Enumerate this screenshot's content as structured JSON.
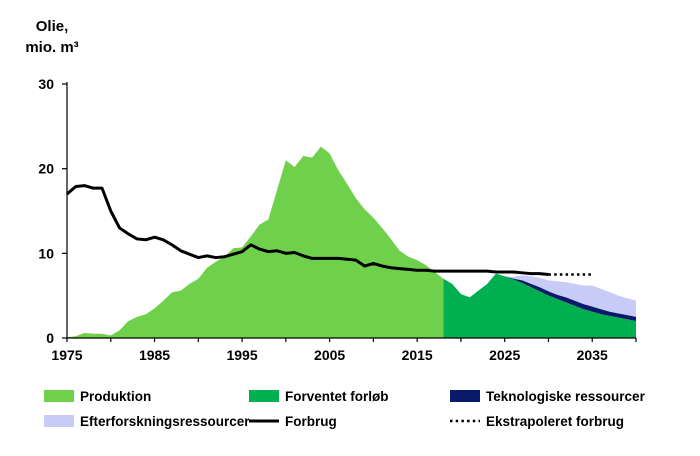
{
  "chart_data": {
    "type": "area",
    "title": "",
    "ylabel_line1": "Olie,",
    "ylabel_line2": "mio. m³",
    "xlabel": "",
    "xlim": [
      1975,
      2040
    ],
    "ylim": [
      0,
      30
    ],
    "yticks": [
      0,
      10,
      20,
      30
    ],
    "xticks": [
      1975,
      1985,
      1995,
      2005,
      2015,
      2025,
      2035
    ],
    "grid": false,
    "legend_position": "bottom",
    "colors": {
      "produktion": "#6fd14b",
      "forventet": "#00b050",
      "teknologiske": "#0a1a6b",
      "efterforskning": "#c9cbf7",
      "forbrug": "#000000",
      "axis": "#000000"
    },
    "series": [
      {
        "name": "Produktion",
        "kind": "area",
        "x": [
          1975,
          1976,
          1977,
          1978,
          1979,
          1980,
          1981,
          1982,
          1983,
          1984,
          1985,
          1986,
          1987,
          1988,
          1989,
          1990,
          1991,
          1992,
          1993,
          1994,
          1995,
          1996,
          1997,
          1998,
          1999,
          2000,
          2001,
          2002,
          2003,
          2004,
          2005,
          2006,
          2007,
          2008,
          2009,
          2010,
          2011,
          2012,
          2013,
          2014,
          2015,
          2016,
          2017,
          2018
        ],
        "values": [
          0.1,
          0.2,
          0.6,
          0.5,
          0.5,
          0.3,
          0.9,
          2.0,
          2.5,
          2.8,
          3.5,
          4.4,
          5.4,
          5.6,
          6.4,
          7.0,
          8.3,
          9.0,
          9.6,
          10.6,
          10.7,
          12.0,
          13.4,
          14.0,
          17.5,
          21.0,
          20.2,
          21.5,
          21.3,
          22.6,
          21.8,
          19.8,
          18.2,
          16.5,
          15.2,
          14.2,
          13.0,
          11.7,
          10.3,
          9.6,
          9.2,
          8.6,
          7.8,
          7.0
        ]
      },
      {
        "name": "Forventet forløb",
        "kind": "area",
        "x": [
          2018,
          2019,
          2020,
          2021,
          2022,
          2023,
          2024,
          2025,
          2026,
          2027,
          2028,
          2029,
          2030,
          2031,
          2032,
          2033,
          2034,
          2035,
          2036,
          2037,
          2038,
          2039,
          2040
        ],
        "values": [
          7.0,
          6.4,
          5.2,
          4.8,
          5.6,
          6.4,
          7.6,
          7.3,
          6.9,
          6.5,
          6.0,
          5.5,
          5.0,
          4.6,
          4.2,
          3.8,
          3.4,
          3.1,
          2.8,
          2.6,
          2.4,
          2.2,
          2.0
        ]
      },
      {
        "name": "Teknologiske ressourcer",
        "kind": "area_stacked",
        "x": [
          2025,
          2026,
          2027,
          2028,
          2029,
          2030,
          2031,
          2032,
          2033,
          2034,
          2035,
          2036,
          2037,
          2038,
          2039,
          2040
        ],
        "values": [
          0.0,
          0.1,
          0.3,
          0.4,
          0.5,
          0.5,
          0.5,
          0.6,
          0.6,
          0.6,
          0.6,
          0.6,
          0.5,
          0.5,
          0.5,
          0.5
        ]
      },
      {
        "name": "Efterforskningsressourcer",
        "kind": "area_stacked",
        "x": [
          2025,
          2026,
          2027,
          2028,
          2029,
          2030,
          2031,
          2032,
          2033,
          2034,
          2035,
          2036,
          2037,
          2038,
          2039,
          2040
        ],
        "values": [
          0.0,
          0.2,
          0.6,
          0.9,
          1.1,
          1.3,
          1.6,
          1.8,
          2.0,
          2.2,
          2.5,
          2.4,
          2.3,
          2.1,
          2.0,
          1.9
        ]
      },
      {
        "name": "Forbrug",
        "kind": "line",
        "x": [
          1975,
          1976,
          1977,
          1978,
          1979,
          1980,
          1981,
          1982,
          1983,
          1984,
          1985,
          1986,
          1987,
          1988,
          1989,
          1990,
          1991,
          1992,
          1993,
          1994,
          1995,
          1996,
          1997,
          1998,
          1999,
          2000,
          2001,
          2002,
          2003,
          2004,
          2005,
          2006,
          2007,
          2008,
          2009,
          2010,
          2011,
          2012,
          2013,
          2014,
          2015,
          2016,
          2017,
          2018,
          2019,
          2020,
          2021,
          2022,
          2023,
          2024,
          2025,
          2026,
          2027,
          2028,
          2029,
          2030
        ],
        "values": [
          17.0,
          17.9,
          18.0,
          17.7,
          17.7,
          15.0,
          13.0,
          12.3,
          11.7,
          11.6,
          11.9,
          11.6,
          11.0,
          10.3,
          9.9,
          9.5,
          9.7,
          9.5,
          9.6,
          9.9,
          10.2,
          11.0,
          10.5,
          10.2,
          10.3,
          10.0,
          10.1,
          9.7,
          9.4,
          9.4,
          9.4,
          9.4,
          9.3,
          9.2,
          8.5,
          8.8,
          8.5,
          8.3,
          8.2,
          8.1,
          8.0,
          8.0,
          7.9,
          7.9,
          7.9,
          7.9,
          7.9,
          7.9,
          7.9,
          7.8,
          7.8,
          7.8,
          7.7,
          7.6,
          7.6,
          7.5
        ]
      },
      {
        "name": "Ekstrapoleret forbrug",
        "kind": "dotted",
        "x": [
          2030,
          2031,
          2032,
          2033,
          2034,
          2035
        ],
        "values": [
          7.5,
          7.5,
          7.5,
          7.5,
          7.5,
          7.5
        ]
      }
    ],
    "legend": [
      {
        "label": "Produktion",
        "symbol": "box",
        "color": "#6fd14b"
      },
      {
        "label": "Forventet forløb",
        "symbol": "box",
        "color": "#00b050"
      },
      {
        "label": "Teknologiske ressourcer",
        "symbol": "box",
        "color": "#0a1a6b"
      },
      {
        "label": "Efterforskningsressourcer",
        "symbol": "box",
        "color": "#c9cbf7"
      },
      {
        "label": "Forbrug",
        "symbol": "line",
        "color": "#000000"
      },
      {
        "label": "Ekstrapoleret forbrug",
        "symbol": "dots",
        "color": "#000000"
      }
    ]
  }
}
